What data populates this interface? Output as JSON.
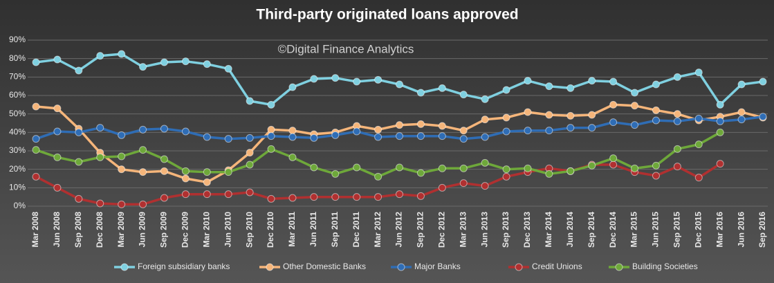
{
  "chart_data": {
    "type": "line",
    "title": "Third-party originated loans approved",
    "annotation": "©Digital Finance Analytics",
    "categories": [
      "Mar 2008",
      "Jun 2008",
      "Sep 2008",
      "Dec 2008",
      "Mar 2009",
      "Jun 2009",
      "Sep 2009",
      "Dec 2009",
      "Mar 2010",
      "Jun 2010",
      "Sep 2010",
      "Dec 2010",
      "Mar 2011",
      "Jun 2011",
      "Sep 2011",
      "Dec 2011",
      "Mar 2012",
      "Jun 2012",
      "Sep 2012",
      "Dec 2012",
      "Mar 2013",
      "Jun 2013",
      "Sep 2013",
      "Dec 2013",
      "Mar 2014",
      "Jun 2014",
      "Sep 2014",
      "Dec 2014",
      "Mar 2015",
      "Jun 2015",
      "Sep 2015",
      "Dec 2015",
      "Mar 2016",
      "Jun 2016",
      "Sep 2016"
    ],
    "series": [
      {
        "name": "Foreign subsidiary banks",
        "color": "#7fd0e0",
        "values": [
          78,
          79.5,
          73.5,
          81.5,
          82.5,
          75.5,
          78,
          78.5,
          77,
          74.5,
          57,
          55,
          64.5,
          69,
          69.5,
          67.5,
          68.5,
          66,
          61.5,
          64,
          60.5,
          58,
          63,
          68,
          65,
          64,
          68,
          67.5,
          61.5,
          66,
          70,
          72.5,
          55,
          66,
          67.5
        ]
      },
      {
        "name": "Other Domestic Banks",
        "color": "#f5b57a",
        "values": [
          54,
          53,
          42,
          29,
          20,
          18.5,
          19,
          15,
          13,
          19.5,
          29,
          41.5,
          41,
          39,
          40,
          43.5,
          41.5,
          44,
          44.5,
          43.5,
          41,
          47,
          48,
          51,
          49.5,
          49,
          49.5,
          55,
          54.5,
          52,
          50,
          46.5,
          48.5,
          51,
          48
        ]
      },
      {
        "name": "Major Banks",
        "color": "#2f6db5",
        "values": [
          36.5,
          40.5,
          40,
          42.5,
          38.5,
          41.5,
          42,
          40.5,
          37.5,
          36.5,
          37,
          38,
          37.5,
          37,
          38.5,
          40.5,
          37.5,
          38,
          38,
          38,
          36.5,
          37.5,
          40.5,
          41,
          41,
          42.5,
          42.5,
          45.5,
          44,
          46.5,
          46,
          47.5,
          46,
          47,
          48.5
        ]
      },
      {
        "name": "Credit Unions",
        "color": "#b03030",
        "values": [
          16,
          10,
          4,
          1.5,
          1,
          1,
          4.5,
          6.5,
          6.5,
          6.5,
          7.5,
          4,
          4.5,
          5,
          5,
          5,
          5,
          6.5,
          5.5,
          10,
          12.5,
          11,
          16,
          18.5,
          20.5,
          19,
          22.5,
          22.5,
          18.5,
          16.5,
          21.5,
          15.5,
          23,
          null,
          null
        ]
      },
      {
        "name": "Building Societies",
        "color": "#6ea83a",
        "values": [
          30.5,
          26.5,
          24,
          26.5,
          27,
          30.5,
          25.5,
          19,
          18.5,
          18.5,
          22.5,
          31,
          26.5,
          21,
          17.5,
          21,
          16,
          21,
          18,
          20.5,
          20.5,
          23.5,
          20,
          20.5,
          17.5,
          19,
          22,
          26,
          20.5,
          22,
          31,
          33.5,
          40,
          null,
          null
        ]
      }
    ],
    "ylim": [
      0,
      90
    ],
    "yticks": [
      {
        "value": 0,
        "label": "0%"
      },
      {
        "value": 10,
        "label": "10%"
      },
      {
        "value": 20,
        "label": "20%"
      },
      {
        "value": 30,
        "label": "30%"
      },
      {
        "value": 40,
        "label": "40%"
      },
      {
        "value": 50,
        "label": "50%"
      },
      {
        "value": 60,
        "label": "60%"
      },
      {
        "value": 70,
        "label": "70%"
      },
      {
        "value": 80,
        "label": "80%"
      },
      {
        "value": 90,
        "label": "90%"
      }
    ],
    "grid": true,
    "legend": "bottom"
  }
}
